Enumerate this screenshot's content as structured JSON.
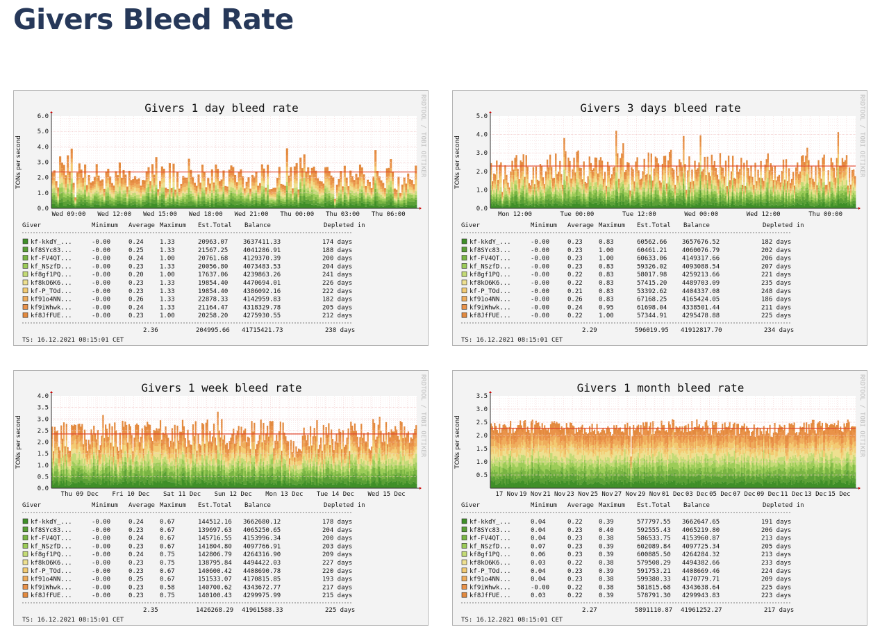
{
  "page": {
    "title": "Givers Bleed Rate"
  },
  "colors": {
    "threshold_line": "#e0452c",
    "grid": "#f2c9c9",
    "background": "#f3f3f3",
    "plot_bg": "#ffffff",
    "gradient": [
      "#3f8f28",
      "#5aa036",
      "#79b543",
      "#9ccc58",
      "#c4db76",
      "#eee090",
      "#f3cb73",
      "#efad5c",
      "#ea9249",
      "#e38a3f"
    ]
  },
  "watermark": "RRDTOOL / TOBI OETIKER",
  "charts": [
    {
      "title": "Givers 1 day bleed rate",
      "ylabel": "TONs per second",
      "chart_data": {
        "type": "area",
        "title": "Givers 1 day bleed rate",
        "ylabel": "TONs per second",
        "ylim": [
          0,
          6
        ],
        "ytick_labels": [
          "0.0",
          "1.0",
          "2.0",
          "3.0",
          "4.0",
          "5.0",
          "6.0"
        ],
        "ytick_values": [
          0,
          1,
          2,
          3,
          4,
          5,
          6
        ],
        "xtick_labels": [
          "Wed 09:00",
          "Wed 12:00",
          "Wed 15:00",
          "Wed 18:00",
          "Wed 21:00",
          "Thu 00:00",
          "Thu 03:00",
          "Thu 06:00"
        ],
        "xtick_frac": [
          0.0,
          0.125,
          0.25,
          0.375,
          0.5,
          0.625,
          0.75,
          0.875
        ],
        "threshold": 2.36,
        "stacked_series": 10,
        "bar_count": 190,
        "grid": true
      },
      "table": {
        "headers": [
          "Giver",
          "Minimum",
          "Average",
          "Maximum",
          "Est.Total",
          "Balance",
          "Depleted in"
        ],
        "rows": [
          [
            "kf-kkdY_...",
            "-0.00",
            "0.24",
            "1.33",
            "20963.07",
            "3637411.33",
            "174 days"
          ],
          [
            "kf8SYc83...",
            "-0.00",
            "0.25",
            "1.33",
            "21567.25",
            "4041286.91",
            "188 days"
          ],
          [
            "kf-FV4QT...",
            "-0.00",
            "0.24",
            "1.00",
            "20761.68",
            "4129370.39",
            "200 days"
          ],
          [
            "kf_NSzfD...",
            "-0.00",
            "0.23",
            "1.33",
            "20056.80",
            "4073483.53",
            "204 days"
          ],
          [
            "kf8gf1PQ...",
            "-0.00",
            "0.20",
            "1.00",
            "17637.06",
            "4239863.26",
            "241 days"
          ],
          [
            "kf8kO6K6...",
            "-0.00",
            "0.23",
            "1.33",
            "19854.40",
            "4470694.01",
            "226 days"
          ],
          [
            "kf-P_TOd...",
            "-0.00",
            "0.23",
            "1.33",
            "19854.40",
            "4386092.16",
            "222 days"
          ],
          [
            "kf91o4NN...",
            "-0.00",
            "0.26",
            "1.33",
            "22878.33",
            "4142959.83",
            "182 days"
          ],
          [
            "kf9iWhwk...",
            "-0.00",
            "0.24",
            "1.33",
            "21164.47",
            "4318329.78",
            "205 days"
          ],
          [
            "kf8JfFUE...",
            "-0.00",
            "0.23",
            "1.00",
            "20258.20",
            "4275930.55",
            "212 days"
          ]
        ],
        "total": {
          "average": "2.36",
          "est_total": "204995.66",
          "balance": "41715421.73",
          "depleted": "238 days"
        }
      },
      "timestamp": "TS: 16.12.2021 08:15:01 CET"
    },
    {
      "title": "Givers 3 days bleed rate",
      "ylabel": "TONs per second",
      "chart_data": {
        "type": "area",
        "title": "Givers 3 days bleed rate",
        "ylabel": "TONs per second",
        "ylim": [
          0,
          5
        ],
        "ytick_labels": [
          "0.0",
          "1.0",
          "2.0",
          "3.0",
          "4.0",
          "5.0"
        ],
        "ytick_values": [
          0,
          1,
          2,
          3,
          4,
          5
        ],
        "xtick_labels": [
          "Mon 12:00",
          "Tue 00:00",
          "Tue 12:00",
          "Wed 00:00",
          "Wed 12:00",
          "Thu 00:00"
        ],
        "xtick_frac": [
          0.02,
          0.19,
          0.36,
          0.53,
          0.7,
          0.87
        ],
        "threshold": 2.29,
        "stacked_series": 10,
        "bar_count": 260,
        "grid": true
      },
      "table": {
        "headers": [
          "Giver",
          "Minimum",
          "Average",
          "Maximum",
          "Est.Total",
          "Balance",
          "Depleted in"
        ],
        "rows": [
          [
            "kf-kkdY_...",
            "-0.00",
            "0.23",
            "0.83",
            "60562.66",
            "3657676.52",
            "182 days"
          ],
          [
            "kf8SYc83...",
            "-0.00",
            "0.23",
            "1.00",
            "60461.21",
            "4060076.79",
            "202 days"
          ],
          [
            "kf-FV4QT...",
            "-0.00",
            "0.23",
            "1.00",
            "60633.06",
            "4149317.66",
            "206 days"
          ],
          [
            "kf_NSzfD...",
            "-0.00",
            "0.23",
            "0.83",
            "59326.02",
            "4093088.54",
            "207 days"
          ],
          [
            "kf8gf1PQ...",
            "-0.00",
            "0.22",
            "0.83",
            "58017.98",
            "4259213.66",
            "221 days"
          ],
          [
            "kf8kO6K6...",
            "-0.00",
            "0.22",
            "0.83",
            "57415.20",
            "4489703.09",
            "235 days"
          ],
          [
            "kf-P_TOd...",
            "-0.00",
            "0.21",
            "0.83",
            "53392.62",
            "4404337.08",
            "248 days"
          ],
          [
            "kf91o4NN...",
            "-0.00",
            "0.26",
            "0.83",
            "67168.25",
            "4165424.05",
            "186 days"
          ],
          [
            "kf9iWhwk...",
            "-0.00",
            "0.24",
            "0.95",
            "61698.04",
            "4338501.44",
            "211 days"
          ],
          [
            "kf8JfFUE...",
            "-0.00",
            "0.22",
            "1.00",
            "57344.91",
            "4295478.88",
            "225 days"
          ]
        ],
        "total": {
          "average": "2.29",
          "est_total": "596019.95",
          "balance": "41912817.70",
          "depleted": "234 days"
        }
      },
      "timestamp": "TS: 16.12.2021 08:15:01 CET"
    },
    {
      "title": "Givers 1 week bleed rate",
      "ylabel": "TONs per second",
      "chart_data": {
        "type": "area",
        "title": "Givers 1 week bleed rate",
        "ylabel": "TONs per second",
        "ylim": [
          0,
          4
        ],
        "ytick_labels": [
          "0.0",
          "0.5",
          "1.0",
          "1.5",
          "2.0",
          "2.5",
          "3.0",
          "3.5",
          "4.0"
        ],
        "ytick_values": [
          0,
          0.5,
          1,
          1.5,
          2,
          2.5,
          3,
          3.5,
          4
        ],
        "xtick_labels": [
          "Thu 09 Dec",
          "Fri 10 Dec",
          "Sat 11 Dec",
          "Sun 12 Dec",
          "Mon 13 Dec",
          "Tue 14 Dec",
          "Wed 15 Dec"
        ],
        "xtick_frac": [
          0.03,
          0.17,
          0.31,
          0.45,
          0.59,
          0.73,
          0.87
        ],
        "threshold": 2.35,
        "stacked_series": 10,
        "bar_count": 280,
        "grid": true
      },
      "table": {
        "headers": [
          "Giver",
          "Minimum",
          "Average",
          "Maximum",
          "Est.Total",
          "Balance",
          "Depleted in"
        ],
        "rows": [
          [
            "kf-kkdY_...",
            "-0.00",
            "0.24",
            "0.67",
            "144512.16",
            "3662680.12",
            "178 days"
          ],
          [
            "kf8SYc83...",
            "-0.00",
            "0.23",
            "0.67",
            "139697.63",
            "4065250.65",
            "204 days"
          ],
          [
            "kf-FV4QT...",
            "-0.00",
            "0.24",
            "0.67",
            "145716.55",
            "4153996.34",
            "200 days"
          ],
          [
            "kf_NSzfD...",
            "-0.00",
            "0.23",
            "0.67",
            "141804.80",
            "4097766.91",
            "203 days"
          ],
          [
            "kf8gf1PQ...",
            "-0.00",
            "0.24",
            "0.75",
            "142806.79",
            "4264316.90",
            "209 days"
          ],
          [
            "kf8kO6K6...",
            "-0.00",
            "0.23",
            "0.75",
            "138795.84",
            "4494422.03",
            "227 days"
          ],
          [
            "kf-P_TOd...",
            "-0.00",
            "0.23",
            "0.67",
            "140600.42",
            "4408690.78",
            "220 days"
          ],
          [
            "kf91o4NN...",
            "-0.00",
            "0.25",
            "0.67",
            "151533.07",
            "4170815.85",
            "193 days"
          ],
          [
            "kf9iWhwk...",
            "-0.00",
            "0.23",
            "0.58",
            "140700.62",
            "4343672.77",
            "217 days"
          ],
          [
            "kf8JfFUE...",
            "-0.00",
            "0.23",
            "0.75",
            "140100.43",
            "4299975.99",
            "215 days"
          ]
        ],
        "total": {
          "average": "2.35",
          "est_total": "1426268.29",
          "balance": "41961588.33",
          "depleted": "225 days"
        }
      },
      "timestamp": "TS: 16.12.2021 08:15:01 CET"
    },
    {
      "title": "Givers 1 month bleed rate",
      "ylabel": "TONs per second",
      "chart_data": {
        "type": "area",
        "title": "Givers 1 month bleed rate",
        "ylabel": "TONs per second",
        "ylim": [
          0,
          3.5
        ],
        "ytick_labels": [
          "0.5",
          "1.0",
          "1.5",
          "2.0",
          "2.5",
          "3.0",
          "3.5"
        ],
        "ytick_values": [
          0.5,
          1,
          1.5,
          2,
          2.5,
          3,
          3.5
        ],
        "xtick_labels": [
          "17 Nov",
          "19 Nov",
          "21 Nov",
          "23 Nov",
          "25 Nov",
          "27 Nov",
          "29 Nov",
          "01 Dec",
          "03 Dec",
          "05 Dec",
          "07 Dec",
          "09 Dec",
          "11 Dec",
          "13 Dec",
          "15 Dec"
        ],
        "xtick_frac": [
          0.045,
          0.11,
          0.175,
          0.24,
          0.305,
          0.37,
          0.435,
          0.5,
          0.565,
          0.63,
          0.695,
          0.76,
          0.825,
          0.89,
          0.955
        ],
        "threshold": 2.27,
        "stacked_series": 10,
        "bar_count": 300,
        "grid": true
      },
      "table": {
        "headers": [
          "Giver",
          "Minimum",
          "Average",
          "Maximum",
          "Est.Total",
          "Balance",
          "Depleted in"
        ],
        "rows": [
          [
            "kf-kkdY_...",
            "0.04",
            "0.22",
            "0.39",
            "577797.55",
            "3662647.65",
            "191 days"
          ],
          [
            "kf8SYc83...",
            "0.04",
            "0.23",
            "0.40",
            "592555.43",
            "4065219.80",
            "206 days"
          ],
          [
            "kf-FV4QT...",
            "0.04",
            "0.23",
            "0.38",
            "586533.75",
            "4153960.87",
            "213 days"
          ],
          [
            "kf_NSzfD...",
            "0.07",
            "0.23",
            "0.39",
            "602089.84",
            "4097725.34",
            "205 days"
          ],
          [
            "kf8gf1PQ...",
            "0.06",
            "0.23",
            "0.39",
            "600885.50",
            "4264284.32",
            "213 days"
          ],
          [
            "kf8kO6K6...",
            "0.03",
            "0.22",
            "0.38",
            "579508.29",
            "4494382.66",
            "233 days"
          ],
          [
            "kf-P_TOd...",
            "0.04",
            "0.23",
            "0.39",
            "591753.21",
            "4408669.46",
            "224 days"
          ],
          [
            "kf91o4NN...",
            "0.04",
            "0.23",
            "0.38",
            "599380.33",
            "4170779.71",
            "209 days"
          ],
          [
            "kf9iWhwk...",
            "-0.00",
            "0.22",
            "0.38",
            "581815.68",
            "4343638.64",
            "225 days"
          ],
          [
            "kf8JfFUE...",
            "0.03",
            "0.22",
            "0.39",
            "578791.30",
            "4299943.83",
            "223 days"
          ]
        ],
        "total": {
          "average": "2.27",
          "est_total": "5891110.87",
          "balance": "41961252.27",
          "depleted": "217 days"
        }
      },
      "timestamp": "TS: 16.12.2021 08:15:01 CET"
    }
  ]
}
